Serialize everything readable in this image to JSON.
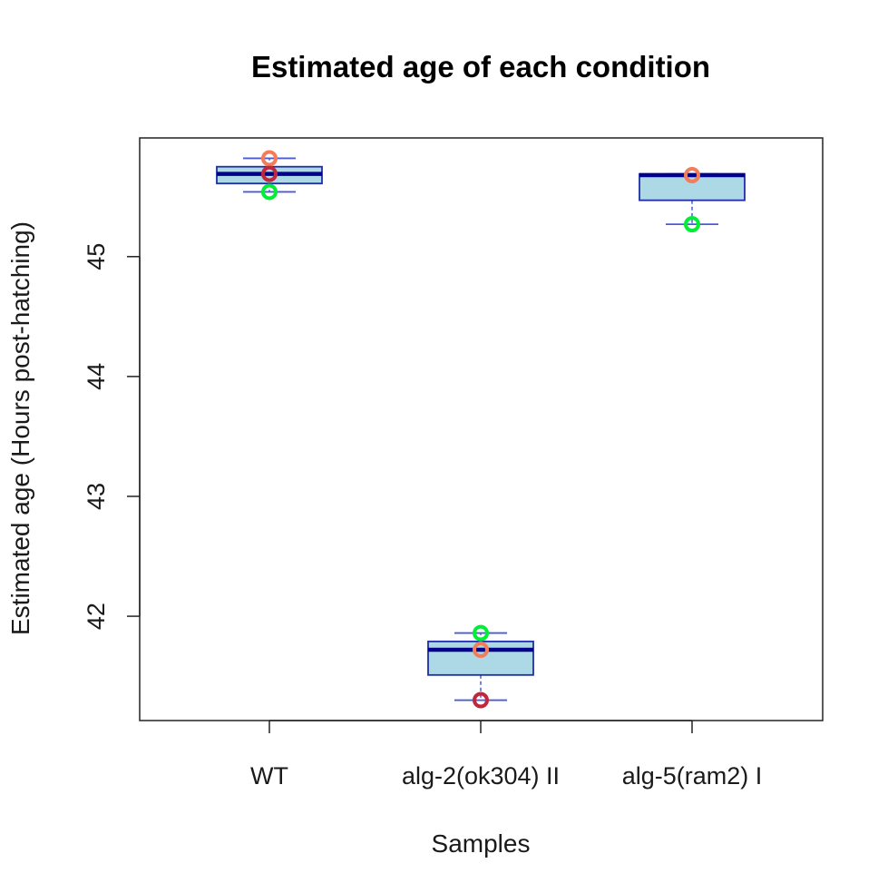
{
  "chart_data": {
    "type": "box",
    "title": "Estimated age of each condition",
    "xlabel": "Samples",
    "ylabel": "Estimated age (Hours post-hatching)",
    "categories": [
      "WT",
      "alg-2(ok304) II",
      "alg-5(ram2) I"
    ],
    "ylim": [
      41.13,
      45.99
    ],
    "yticks": [
      42,
      43,
      44,
      45
    ],
    "grid": false,
    "boxes": [
      {
        "whisker_low": 45.54,
        "q1": 45.61,
        "median": 45.69,
        "q3": 45.75,
        "whisker_high": 45.82
      },
      {
        "whisker_low": 41.3,
        "q1": 41.51,
        "median": 41.72,
        "q3": 41.79,
        "whisker_high": 41.86
      },
      {
        "whisker_low": 45.27,
        "q1": 45.47,
        "median": 45.68,
        "q3": 45.69,
        "whisker_high": 45.69
      }
    ],
    "points": [
      {
        "category": "WT",
        "y": 45.82,
        "color": "#f47c5a"
      },
      {
        "category": "WT",
        "y": 45.69,
        "color": "#c0273e"
      },
      {
        "category": "WT",
        "y": 45.54,
        "color": "#00ee33"
      },
      {
        "category": "alg-2(ok304) II",
        "y": 41.86,
        "color": "#00ee33"
      },
      {
        "category": "alg-2(ok304) II",
        "y": 41.72,
        "color": "#f47c5a"
      },
      {
        "category": "alg-2(ok304) II",
        "y": 41.3,
        "color": "#c0273e"
      },
      {
        "category": "alg-5(ram2) I",
        "y": 45.68,
        "color": "#f47c5a"
      },
      {
        "category": "alg-5(ram2) I",
        "y": 45.27,
        "color": "#00ee33"
      }
    ],
    "colors": {
      "box_fill": "#add8e6",
      "box_border": "#1f2ea8",
      "median": "#00008b",
      "whisker": "#4b5bd6"
    }
  }
}
